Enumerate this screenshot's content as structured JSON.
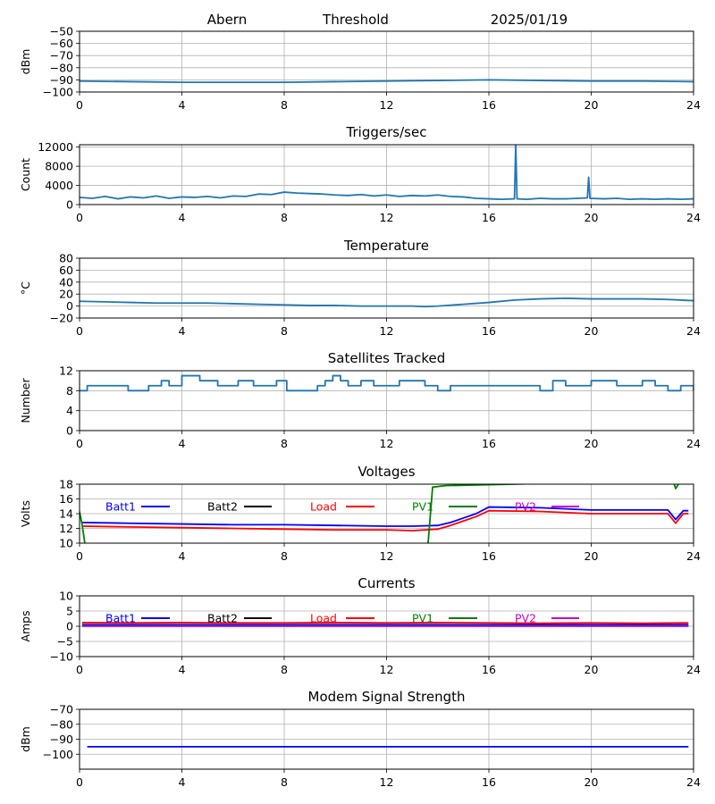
{
  "header": {
    "station": "Abern",
    "mode": "Threshold",
    "date": "2025/01/19"
  },
  "chart_data": [
    {
      "id": "signal",
      "type": "line",
      "title": "",
      "xlabel": "",
      "ylabel": "dBm",
      "xlim": [
        0,
        24
      ],
      "ylim": [
        -100,
        -50
      ],
      "xticks": [
        0,
        4,
        8,
        12,
        16,
        20,
        24
      ],
      "yticks": [
        -100,
        -90,
        -80,
        -70,
        -60,
        -50
      ],
      "grid": true,
      "series": [
        {
          "color": "#1f77b4",
          "x": [
            0,
            2,
            4,
            6,
            8,
            10,
            12,
            14,
            16,
            18,
            20,
            22,
            24
          ],
          "y": [
            -91,
            -91.5,
            -92,
            -92,
            -92,
            -91.5,
            -91,
            -90.5,
            -90,
            -90.5,
            -91,
            -91,
            -91.5
          ]
        }
      ]
    },
    {
      "id": "triggers",
      "type": "line",
      "title": "Triggers/sec",
      "xlabel": "",
      "ylabel": "Count",
      "xlim": [
        0,
        24
      ],
      "ylim": [
        0,
        12500
      ],
      "xticks": [
        0,
        4,
        8,
        12,
        16,
        20,
        24
      ],
      "yticks": [
        0,
        4000,
        8000,
        12000
      ],
      "grid": true,
      "series": [
        {
          "color": "#1f77b4",
          "x": [
            0,
            0.5,
            1,
            1.5,
            2,
            2.5,
            3,
            3.5,
            4,
            4.5,
            5,
            5.5,
            6,
            6.5,
            7,
            7.5,
            8,
            8.5,
            9,
            9.5,
            10,
            10.5,
            11,
            11.5,
            12,
            12.5,
            13,
            13.5,
            14,
            14.5,
            15,
            15.5,
            16,
            16.5,
            17,
            17.05,
            17.1,
            17.5,
            18,
            18.5,
            19,
            19.5,
            19.85,
            19.9,
            19.95,
            20.5,
            21,
            21.5,
            22,
            22.5,
            23,
            23.5,
            24
          ],
          "y": [
            1500,
            1300,
            1700,
            1200,
            1600,
            1400,
            1800,
            1300,
            1600,
            1500,
            1700,
            1400,
            1800,
            1700,
            2200,
            2100,
            2600,
            2400,
            2300,
            2200,
            2000,
            1900,
            2100,
            1800,
            2000,
            1700,
            1900,
            1800,
            2000,
            1700,
            1600,
            1300,
            1200,
            1100,
            1200,
            12400,
            1200,
            1100,
            1300,
            1200,
            1200,
            1300,
            1400,
            5700,
            1300,
            1200,
            1300,
            1100,
            1200,
            1100,
            1200,
            1100,
            1200
          ]
        }
      ]
    },
    {
      "id": "temperature",
      "type": "line",
      "title": "Temperature",
      "xlabel": "",
      "ylabel": "°C",
      "xlim": [
        0,
        24
      ],
      "ylim": [
        -20,
        80
      ],
      "xticks": [
        0,
        4,
        8,
        12,
        16,
        20,
        24
      ],
      "yticks": [
        -20,
        0,
        20,
        40,
        60,
        80
      ],
      "grid": true,
      "series": [
        {
          "color": "#1f77b4",
          "x": [
            0,
            1,
            2,
            3,
            4,
            5,
            6,
            7,
            8,
            9,
            10,
            11,
            12,
            13,
            13.5,
            14,
            15,
            16,
            17,
            18,
            19,
            20,
            21,
            22,
            23,
            24
          ],
          "y": [
            8,
            7,
            6,
            5,
            5,
            5,
            4,
            3,
            2,
            1,
            1,
            0,
            0,
            0,
            -1,
            0,
            3,
            6,
            10,
            12,
            13,
            12,
            12,
            12,
            11,
            9
          ]
        }
      ]
    },
    {
      "id": "satellites",
      "type": "line",
      "title": "Satellites Tracked",
      "xlabel": "",
      "ylabel": "Number",
      "xlim": [
        0,
        24
      ],
      "ylim": [
        0,
        12
      ],
      "xticks": [
        0,
        4,
        8,
        12,
        16,
        20,
        24
      ],
      "yticks": [
        0,
        4,
        8,
        12
      ],
      "grid": true,
      "step": true,
      "series": [
        {
          "color": "#1f77b4",
          "x": [
            0,
            0.3,
            0.5,
            1.2,
            1.9,
            2.3,
            2.7,
            3.2,
            3.5,
            4.0,
            4.7,
            5.4,
            6.2,
            6.8,
            7.2,
            7.7,
            8.1,
            8.7,
            9.3,
            9.6,
            9.9,
            10.2,
            10.5,
            11.0,
            11.5,
            12.0,
            12.5,
            13.0,
            13.5,
            14.0,
            14.5,
            15.0,
            15.5,
            16.0,
            16.5,
            17.0,
            17.5,
            18.0,
            18.5,
            19.0,
            19.5,
            20.0,
            20.5,
            21.0,
            21.5,
            22.0,
            22.5,
            23.0,
            23.5,
            24
          ],
          "y": [
            8,
            9,
            9,
            9,
            8,
            8,
            9,
            10,
            9,
            11,
            10,
            9,
            10,
            9,
            9,
            10,
            8,
            8,
            9,
            10,
            11,
            10,
            9,
            10,
            9,
            9,
            10,
            10,
            9,
            8,
            9,
            9,
            9,
            9,
            9,
            9,
            9,
            8,
            10,
            9,
            9,
            10,
            10,
            9,
            9,
            10,
            9,
            8,
            9,
            8
          ]
        }
      ]
    },
    {
      "id": "voltages",
      "type": "line",
      "title": "Voltages",
      "xlabel": "",
      "ylabel": "Volts",
      "xlim": [
        0,
        24
      ],
      "ylim": [
        10,
        18
      ],
      "xticks": [
        0,
        4,
        8,
        12,
        16,
        20,
        24
      ],
      "yticks": [
        10,
        12,
        14,
        16,
        18
      ],
      "grid": true,
      "legend": "top-inline",
      "series": [
        {
          "name": "Batt1",
          "color": "#0000ff",
          "x": [
            0.1,
            2,
            4,
            6,
            8,
            10,
            12,
            13,
            14,
            14.5,
            15,
            15.5,
            16,
            18,
            20,
            22,
            23,
            23.3,
            23.6,
            23.8
          ],
          "y": [
            12.8,
            12.7,
            12.6,
            12.5,
            12.5,
            12.4,
            12.3,
            12.3,
            12.4,
            12.8,
            13.4,
            14.0,
            14.9,
            14.8,
            14.5,
            14.5,
            14.5,
            13.2,
            14.4,
            14.4
          ]
        },
        {
          "name": "Batt2",
          "color": "#000000",
          "x": [],
          "y": []
        },
        {
          "name": "Load",
          "color": "#ff0000",
          "x": [
            0.1,
            2,
            4,
            6,
            8,
            10,
            12,
            13,
            14,
            14.5,
            15,
            15.5,
            16,
            18,
            20,
            22,
            23,
            23.3,
            23.6,
            23.8
          ],
          "y": [
            12.3,
            12.2,
            12.1,
            12.0,
            11.9,
            11.8,
            11.8,
            11.7,
            11.9,
            12.4,
            13.0,
            13.6,
            14.4,
            14.3,
            14.0,
            14.0,
            14.0,
            12.7,
            14.0,
            14.0
          ]
        },
        {
          "name": "PV1",
          "color": "#008000",
          "x": [
            0,
            0.1,
            0.25,
            13.6,
            13.8,
            14.3,
            23.2,
            23.3,
            23.5
          ],
          "y": [
            14.3,
            12.5,
            9.0,
            9.0,
            17.6,
            17.8,
            18.5,
            17.4,
            18.5
          ]
        },
        {
          "name": "PV2",
          "color": "#cc00cc",
          "x": [],
          "y": []
        }
      ]
    },
    {
      "id": "currents",
      "type": "line",
      "title": "Currents",
      "xlabel": "",
      "ylabel": "Amps",
      "xlim": [
        0,
        24
      ],
      "ylim": [
        -10,
        10
      ],
      "xticks": [
        0,
        4,
        8,
        12,
        16,
        20,
        24
      ],
      "yticks": [
        -10,
        -5,
        0,
        5,
        10
      ],
      "grid": true,
      "legend": "top-inline",
      "series": [
        {
          "name": "Batt1",
          "color": "#0000ff",
          "x": [
            0.1,
            23.8
          ],
          "y": [
            0.5,
            0.5
          ]
        },
        {
          "name": "Batt2",
          "color": "#000000",
          "x": [],
          "y": []
        },
        {
          "name": "Load",
          "color": "#ff0000",
          "x": [
            0.1,
            2,
            4,
            6,
            8,
            10,
            12,
            14,
            16,
            18,
            20,
            22,
            23.8
          ],
          "y": [
            1.2,
            1.1,
            1.2,
            1.1,
            1.1,
            1.2,
            1.1,
            1.2,
            1.1,
            1.0,
            1.1,
            1.0,
            1.1
          ]
        },
        {
          "name": "PV1",
          "color": "#008000",
          "x": [
            0.1,
            23.8
          ],
          "y": [
            0.1,
            0.1
          ]
        },
        {
          "name": "PV2",
          "color": "#cc00cc",
          "x": [
            0.1,
            23.8
          ],
          "y": [
            0,
            0
          ]
        }
      ]
    },
    {
      "id": "modem",
      "type": "line",
      "title": "Modem Signal Strength",
      "xlabel": "",
      "ylabel": "dBm",
      "xlim": [
        0,
        24
      ],
      "ylim": [
        -110,
        -70
      ],
      "xticks": [
        0,
        4,
        8,
        12,
        16,
        20,
        24
      ],
      "yticks": [
        -100,
        -90,
        -80,
        -70
      ],
      "grid": true,
      "series": [
        {
          "color": "#0000ff",
          "x": [
            0.3,
            23.8
          ],
          "y": [
            -95,
            -95
          ]
        }
      ]
    }
  ]
}
